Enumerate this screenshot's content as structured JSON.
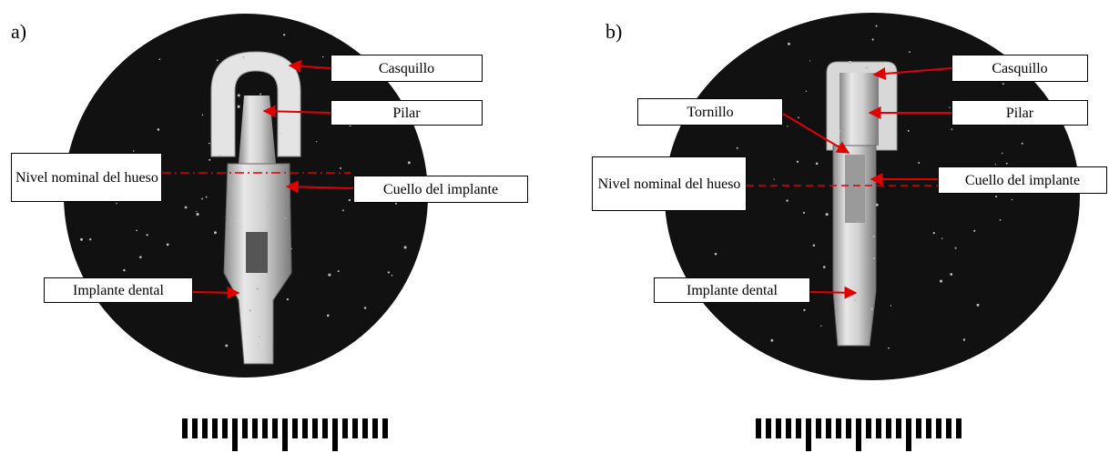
{
  "panels": [
    {
      "label": "a)",
      "callouts": {
        "cap": "Casquillo",
        "abutment": "Pilar",
        "bone_level": "Nivel nominal del hueso",
        "neck": "Cuello del implante",
        "implant": "Implante dental"
      }
    },
    {
      "label": "b)",
      "callouts": {
        "cap": "Casquillo",
        "abutment": "Pilar",
        "screw": "Tornillo",
        "bone_level": "Nivel nominal del hueso",
        "neck": "Cuello del implante",
        "implant": "Implante dental"
      }
    }
  ]
}
